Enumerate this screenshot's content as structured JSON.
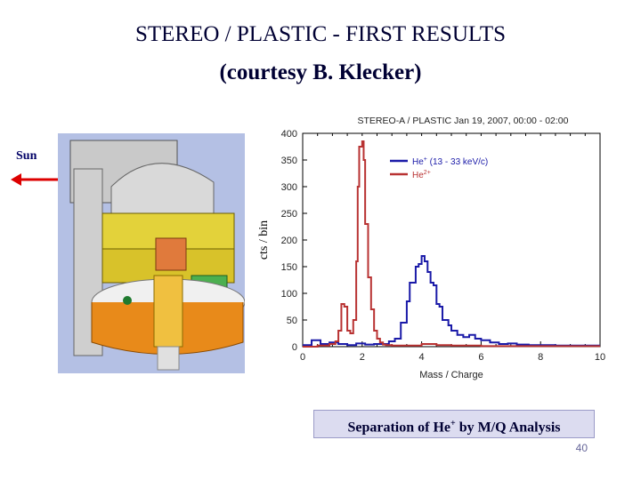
{
  "slide": {
    "title": "STEREO / PLASTIC - FIRST RESULTS",
    "subtitle": "(courtesy B. Klecker)",
    "sun_label": "Sun",
    "caption_pre": "Separation of He",
    "caption_sup": "+",
    "caption_post": " by M/Q Analysis",
    "page_number": "40",
    "colors": {
      "title": "#000033",
      "arrow": "#dd0000",
      "caption_bg": "#dcdcf0"
    }
  },
  "instrument_image": {
    "icon": "instrument-cutaway-icon"
  },
  "chart_data": {
    "type": "line",
    "title": "STEREO-A / PLASTIC Jan 19, 2007, 00:00 - 02:00",
    "xlabel": "Mass / Charge",
    "ylabel": "cts / bin",
    "xlim": [
      0,
      10
    ],
    "ylim": [
      0,
      400
    ],
    "xticks": [
      "0",
      "2",
      "4",
      "6",
      "8",
      "10"
    ],
    "yticks": [
      "0",
      "50",
      "100",
      "150",
      "200",
      "250",
      "300",
      "350",
      "400"
    ],
    "legend": "top-right",
    "series": [
      {
        "name": "He+ (13 - 33 keV/c)",
        "legend_main": "He",
        "legend_sup": "+",
        "legend_rest": " (13 - 33 keV/c)",
        "color": "#1a1aa8",
        "x": [
          0.0,
          0.3,
          0.6,
          0.9,
          1.2,
          1.5,
          1.8,
          2.1,
          2.4,
          2.7,
          2.9,
          3.1,
          3.3,
          3.5,
          3.6,
          3.7,
          3.8,
          3.9,
          4.0,
          4.1,
          4.2,
          4.3,
          4.4,
          4.5,
          4.6,
          4.7,
          4.8,
          4.9,
          5.0,
          5.2,
          5.4,
          5.6,
          5.8,
          6.0,
          6.3,
          6.6,
          6.9,
          7.2,
          7.6,
          8.0,
          8.5,
          9.0,
          9.5,
          10.0
        ],
        "y": [
          3,
          12,
          5,
          8,
          5,
          3,
          6,
          4,
          5,
          5,
          10,
          15,
          45,
          85,
          120,
          120,
          150,
          155,
          170,
          160,
          140,
          120,
          115,
          80,
          75,
          50,
          50,
          40,
          30,
          22,
          18,
          22,
          15,
          12,
          8,
          5,
          6,
          4,
          3,
          3,
          2,
          2,
          2,
          2
        ]
      },
      {
        "name": "He2+",
        "legend_main": "He",
        "legend_sup": "2+",
        "legend_rest": "",
        "color": "#b83232",
        "x": [
          0.0,
          0.5,
          0.9,
          1.1,
          1.2,
          1.3,
          1.4,
          1.5,
          1.6,
          1.7,
          1.8,
          1.85,
          1.9,
          2.0,
          2.05,
          2.1,
          2.2,
          2.3,
          2.4,
          2.5,
          2.6,
          2.7,
          2.8,
          3.0,
          3.4,
          4.0,
          4.5,
          5.0,
          6.0,
          7.0,
          8.0,
          9.0,
          10.0
        ],
        "y": [
          0,
          2,
          5,
          10,
          30,
          80,
          75,
          30,
          25,
          50,
          160,
          300,
          375,
          385,
          350,
          230,
          130,
          70,
          30,
          15,
          8,
          4,
          3,
          2,
          2,
          5,
          3,
          2,
          1,
          1,
          1,
          1,
          1
        ]
      }
    ]
  }
}
